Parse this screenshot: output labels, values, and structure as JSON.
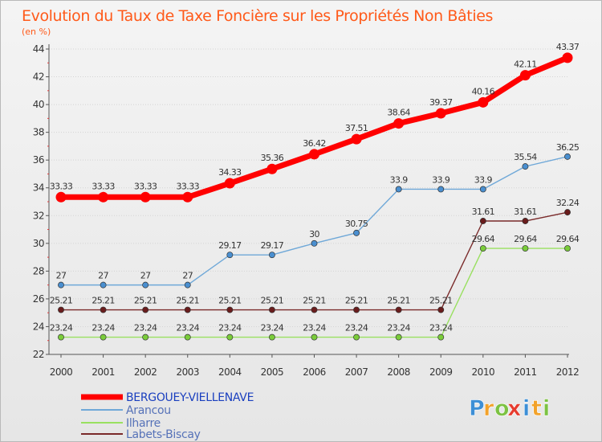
{
  "chart_data": {
    "type": "line",
    "title": "Evolution du Taux de Taxe Foncière sur les Propriétés Non Bâties",
    "ylabel": "(en %)",
    "xlabel": "",
    "categories": [
      "2000",
      "2001",
      "2002",
      "2003",
      "2004",
      "2005",
      "2006",
      "2007",
      "2008",
      "2009",
      "2010",
      "2011",
      "2012"
    ],
    "ylim": [
      22,
      44
    ],
    "yticks": [
      "22",
      "24",
      "26",
      "28",
      "30",
      "32",
      "34",
      "36",
      "38",
      "40",
      "42",
      "44"
    ],
    "grid": true,
    "legend_position": "bottom-left",
    "series": [
      {
        "name": "BERGOUEY-VIELLENAVE",
        "color": "#ff0000",
        "values": [
          33.33,
          33.33,
          33.33,
          33.33,
          34.33,
          35.36,
          36.42,
          37.51,
          38.64,
          39.37,
          40.16,
          42.11,
          43.37
        ],
        "labels": [
          "33.33",
          "33.33",
          "33.33",
          "33.33",
          "34.33",
          "35.36",
          "36.42",
          "37.51",
          "38.64",
          "39.37",
          "40.16",
          "42.11",
          "43.37"
        ]
      },
      {
        "name": "Arancou",
        "color": "#6fa8d8",
        "marker_color": "#4a8fd0",
        "values": [
          27,
          27,
          27,
          27,
          29.17,
          29.17,
          30,
          30.75,
          33.9,
          33.9,
          33.9,
          35.54,
          36.25
        ],
        "labels": [
          "27",
          "27",
          "27",
          "27",
          "29.17",
          "29.17",
          "30",
          "30.75",
          "33.9",
          "33.9",
          "33.9",
          "35.54",
          "36.25"
        ]
      },
      {
        "name": "Ilharre",
        "color": "#99e060",
        "marker_color": "#7acc3a",
        "values": [
          23.24,
          23.24,
          23.24,
          23.24,
          23.24,
          23.24,
          23.24,
          23.24,
          23.24,
          23.24,
          29.64,
          29.64,
          29.64
        ],
        "labels": [
          "23.24",
          "23.24",
          "23.24",
          "23.24",
          "23.24",
          "23.24",
          "23.24",
          "23.24",
          "23.24",
          "23.24",
          "29.64",
          "29.64",
          "29.64"
        ]
      },
      {
        "name": "Labets-Biscay",
        "color": "#7a2a2a",
        "marker_color": "#6a1c1c",
        "values": [
          25.21,
          25.21,
          25.21,
          25.21,
          25.21,
          25.21,
          25.21,
          25.21,
          25.21,
          25.21,
          31.61,
          31.61,
          32.24
        ],
        "labels": [
          "25.21",
          "25.21",
          "25.21",
          "25.21",
          "25.21",
          "25.21",
          "25.21",
          "25.21",
          "25.21",
          "25.21",
          "31.61",
          "31.61",
          "32.24"
        ]
      }
    ]
  },
  "logo": {
    "letters": [
      "P",
      "r",
      "o",
      "x",
      "i",
      "t",
      "i"
    ],
    "colors": [
      "#3d8fd6",
      "#f2a22a",
      "#7cc242",
      "#e63b2e",
      "#3d8fd6",
      "#f2a22a",
      "#7cc242"
    ]
  }
}
